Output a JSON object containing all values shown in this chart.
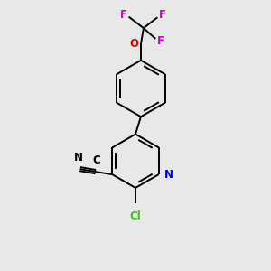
{
  "background_color": "#e8e8e8",
  "bond_color": "#000000",
  "atom_colors": {
    "N_pyridine": "#0000ee",
    "N_nitrile": "#000000",
    "O": "#dd0000",
    "F": "#cc00cc",
    "Cl": "#33cc00",
    "C": "#000000"
  },
  "figsize": [
    3.0,
    3.0
  ],
  "dpi": 100,
  "bond_lw": 1.4,
  "font_size": 8.5
}
